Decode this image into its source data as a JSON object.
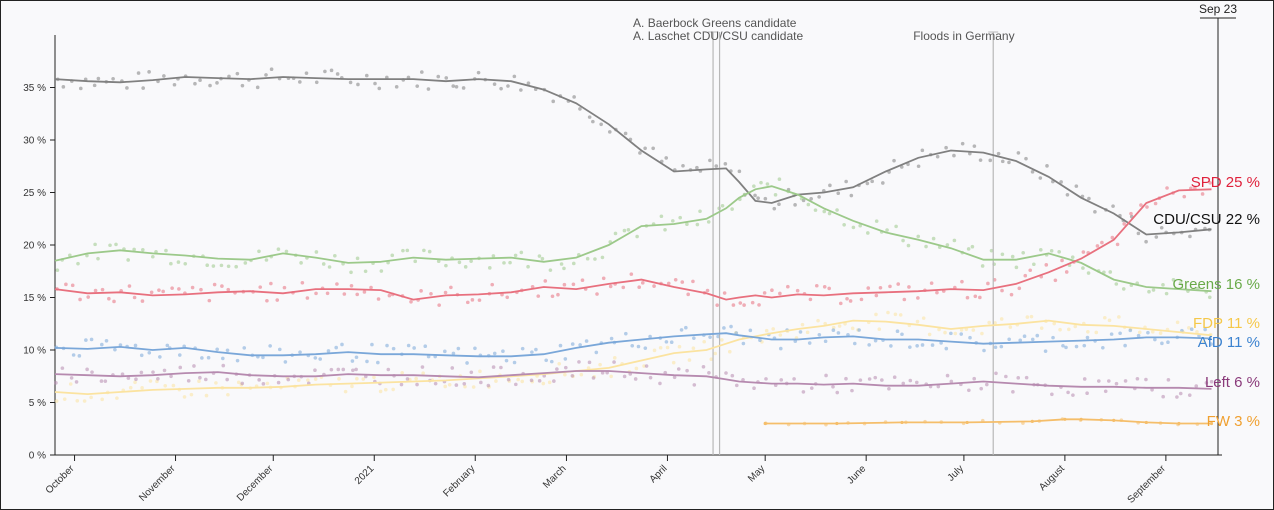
{
  "chart_data": {
    "type": "line",
    "title": "",
    "xlabel": "",
    "ylabel": "",
    "ylim": [
      0,
      40
    ],
    "y_ticks": [
      {
        "value": 0,
        "label": "0 %"
      },
      {
        "value": 5,
        "label": "5 %"
      },
      {
        "value": 10,
        "label": "10 %"
      },
      {
        "value": 15,
        "label": "15 %"
      },
      {
        "value": 20,
        "label": "20 %"
      },
      {
        "value": 25,
        "label": "25 %"
      },
      {
        "value": 30,
        "label": "30 %"
      },
      {
        "value": 35,
        "label": "35 %"
      }
    ],
    "x_range": [
      0,
      357
    ],
    "x_ticks": [
      {
        "day": 6,
        "label": "October"
      },
      {
        "day": 37,
        "label": "November"
      },
      {
        "day": 67,
        "label": "December"
      },
      {
        "day": 98,
        "label": "2021"
      },
      {
        "day": 129,
        "label": "February"
      },
      {
        "day": 157,
        "label": "March"
      },
      {
        "day": 188,
        "label": "April"
      },
      {
        "day": 218,
        "label": "May"
      },
      {
        "day": 249,
        "label": "June"
      },
      {
        "day": 279,
        "label": "July"
      },
      {
        "day": 310,
        "label": "August"
      },
      {
        "day": 341,
        "label": "September"
      }
    ],
    "events": [
      {
        "day": 202,
        "label_lines": [
          "A. Baerbock Greens candidate",
          "A. Laschet CDU/CSU candidate"
        ],
        "label_top": true
      },
      {
        "day": 204,
        "label_lines": [],
        "label_top": false
      },
      {
        "day": 288,
        "label_lines": [
          "Floods in Germany"
        ],
        "label_top": false
      }
    ],
    "current_marker": {
      "day": 357,
      "label": "Sep 23"
    },
    "series": [
      {
        "name": "CDU/CSU",
        "label": "CDU/CSU 22 %",
        "color": "#808080",
        "label_color": "#111111",
        "x": [
          0,
          10,
          20,
          30,
          40,
          50,
          60,
          70,
          80,
          90,
          100,
          110,
          120,
          130,
          140,
          150,
          160,
          170,
          180,
          190,
          200,
          206,
          210,
          215,
          220,
          228,
          236,
          245,
          255,
          265,
          275,
          285,
          295,
          305,
          315,
          325,
          335,
          345,
          355
        ],
        "values": [
          35.8,
          35.6,
          35.5,
          35.7,
          36.0,
          35.9,
          35.8,
          36.0,
          35.9,
          35.8,
          35.8,
          35.8,
          35.6,
          35.8,
          35.6,
          34.8,
          33.5,
          31.5,
          29.0,
          27.0,
          27.2,
          27.3,
          26.0,
          24.2,
          24.0,
          24.8,
          25.0,
          25.5,
          27.0,
          28.3,
          29.0,
          28.8,
          28.0,
          26.5,
          24.5,
          23.0,
          21.0,
          21.2,
          21.5
        ]
      },
      {
        "name": "Greens",
        "label": "Greens 16 %",
        "color": "#9cc98a",
        "label_color": "#6aaa4a",
        "x": [
          0,
          10,
          20,
          30,
          40,
          50,
          60,
          70,
          80,
          90,
          100,
          110,
          120,
          130,
          140,
          150,
          160,
          170,
          180,
          190,
          200,
          206,
          210,
          215,
          220,
          228,
          236,
          245,
          255,
          265,
          275,
          285,
          295,
          305,
          315,
          325,
          335,
          345,
          355
        ],
        "values": [
          18.5,
          19.2,
          19.5,
          19.2,
          19.0,
          18.7,
          18.6,
          19.2,
          18.8,
          18.3,
          18.4,
          18.8,
          18.6,
          18.7,
          18.8,
          18.4,
          18.8,
          20.0,
          21.8,
          22.0,
          22.5,
          23.5,
          24.5,
          25.3,
          25.6,
          24.8,
          23.5,
          22.3,
          21.2,
          20.5,
          19.7,
          18.6,
          18.6,
          19.2,
          18.3,
          16.7,
          16.0,
          15.8,
          15.6
        ]
      },
      {
        "name": "SPD",
        "label": "SPD 25 %",
        "color": "#e8707e",
        "label_color": "#e0213b",
        "x": [
          0,
          10,
          20,
          30,
          40,
          50,
          60,
          70,
          80,
          90,
          100,
          110,
          120,
          130,
          140,
          150,
          160,
          170,
          180,
          190,
          200,
          206,
          210,
          215,
          220,
          228,
          236,
          245,
          255,
          265,
          275,
          285,
          295,
          305,
          315,
          325,
          335,
          345,
          355
        ],
        "values": [
          15.8,
          15.4,
          15.5,
          15.2,
          15.3,
          15.5,
          15.6,
          15.4,
          15.8,
          15.8,
          15.7,
          14.8,
          15.2,
          15.3,
          15.5,
          16.0,
          15.8,
          16.3,
          16.7,
          16.0,
          15.4,
          14.8,
          15.0,
          15.2,
          15.0,
          15.3,
          15.2,
          15.4,
          15.5,
          15.6,
          15.8,
          15.7,
          16.3,
          17.4,
          18.7,
          20.5,
          24.0,
          25.2,
          25.3
        ]
      },
      {
        "name": "FDP",
        "label": "FDP 11 %",
        "color": "#fbe3a0",
        "label_color": "#f5c84a",
        "x": [
          0,
          10,
          20,
          30,
          40,
          50,
          60,
          70,
          80,
          90,
          100,
          110,
          120,
          130,
          140,
          150,
          160,
          170,
          180,
          190,
          200,
          206,
          210,
          215,
          220,
          228,
          236,
          245,
          255,
          265,
          275,
          285,
          295,
          305,
          315,
          325,
          335,
          345,
          355
        ],
        "values": [
          6.0,
          5.8,
          6.0,
          6.2,
          6.3,
          6.4,
          6.4,
          6.5,
          6.7,
          6.8,
          6.9,
          7.0,
          7.1,
          7.3,
          7.5,
          7.7,
          8.0,
          8.3,
          9.0,
          9.7,
          10.0,
          10.6,
          11.0,
          11.3,
          11.6,
          12.0,
          12.3,
          12.8,
          12.7,
          12.4,
          12.0,
          12.3,
          12.5,
          12.8,
          12.4,
          12.3,
          12.0,
          11.7,
          11.4
        ]
      },
      {
        "name": "AfD",
        "label": "AfD 11 %",
        "color": "#7aa7d9",
        "label_color": "#3c83d0",
        "x": [
          0,
          10,
          20,
          30,
          40,
          50,
          60,
          70,
          80,
          90,
          100,
          110,
          120,
          130,
          140,
          150,
          160,
          170,
          180,
          190,
          200,
          206,
          210,
          215,
          220,
          228,
          236,
          245,
          255,
          265,
          275,
          285,
          295,
          305,
          315,
          325,
          335,
          345,
          355
        ],
        "values": [
          10.2,
          10.1,
          10.3,
          10.0,
          10.2,
          9.8,
          9.5,
          9.5,
          9.6,
          9.8,
          9.6,
          9.6,
          9.5,
          9.4,
          9.4,
          9.6,
          10.2,
          10.7,
          11.0,
          11.3,
          11.5,
          11.6,
          11.4,
          11.2,
          11.0,
          11.0,
          11.2,
          11.3,
          11.0,
          11.0,
          10.8,
          10.6,
          10.7,
          10.8,
          10.9,
          11.0,
          11.2,
          11.2,
          11.1
        ]
      },
      {
        "name": "Left",
        "label": "Left 6 %",
        "color": "#b68aaf",
        "label_color": "#8a3a7a",
        "x": [
          0,
          10,
          20,
          30,
          40,
          50,
          60,
          70,
          80,
          90,
          100,
          110,
          120,
          130,
          140,
          150,
          160,
          170,
          180,
          190,
          200,
          206,
          210,
          215,
          220,
          228,
          236,
          245,
          255,
          265,
          275,
          285,
          295,
          305,
          315,
          325,
          335,
          345,
          355
        ],
        "values": [
          7.7,
          7.6,
          7.5,
          7.6,
          7.8,
          7.9,
          7.6,
          7.5,
          7.5,
          7.7,
          7.6,
          7.6,
          7.5,
          7.4,
          7.6,
          7.8,
          8.0,
          8.0,
          7.8,
          7.6,
          7.5,
          7.2,
          7.0,
          6.9,
          6.8,
          6.8,
          6.7,
          6.8,
          6.6,
          6.6,
          6.8,
          7.0,
          6.8,
          6.6,
          6.5,
          6.5,
          6.4,
          6.4,
          6.3
        ]
      },
      {
        "name": "FW",
        "label": "FW 3 %",
        "color": "#f5be6a",
        "label_color": "#f0a030",
        "x": [
          218,
          240,
          260,
          280,
          300,
          310,
          315,
          325,
          335,
          345,
          355
        ],
        "values": [
          3.0,
          3.0,
          3.1,
          3.1,
          3.2,
          3.4,
          3.4,
          3.3,
          3.1,
          3.0,
          3.0
        ]
      }
    ]
  }
}
